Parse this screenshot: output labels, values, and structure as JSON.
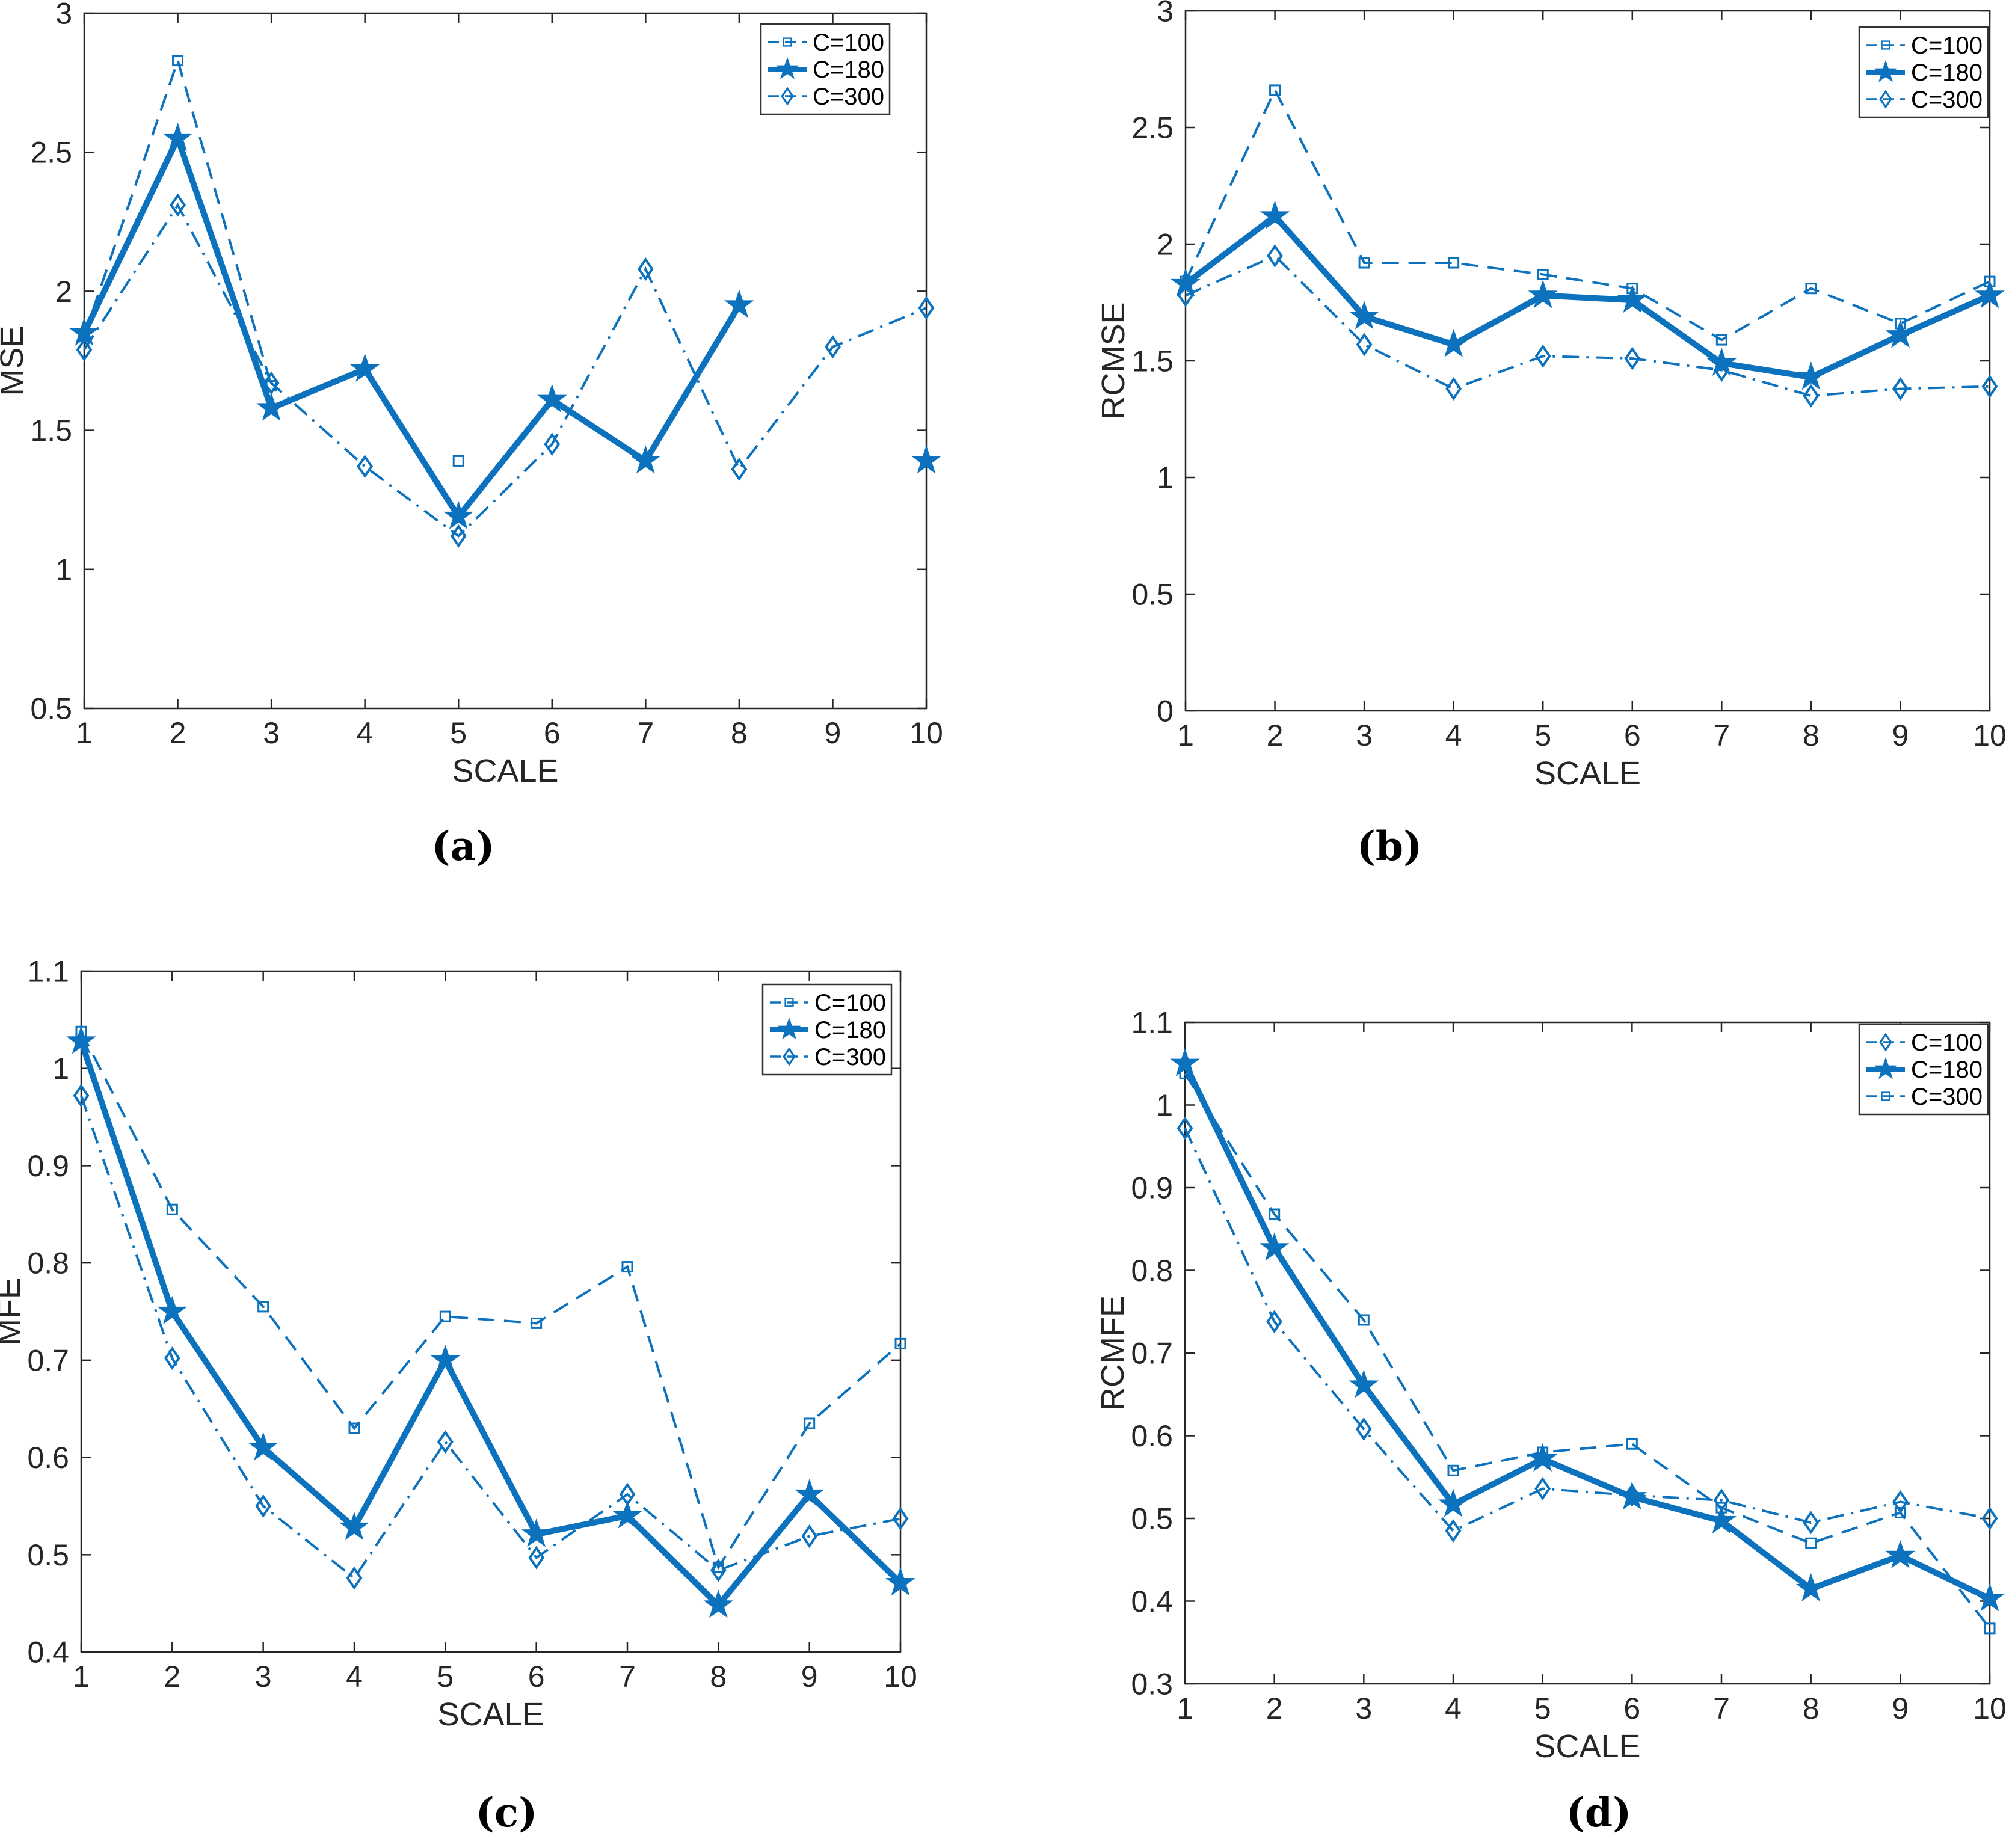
{
  "figure": {
    "background": "#ffffff",
    "accent_color": "#0d72bd",
    "axis_color": "#262626",
    "captions": {
      "a": "(a)",
      "b": "(b)",
      "c": "(c)",
      "d": "(d)"
    }
  },
  "chart_data": [
    {
      "id": "a",
      "type": "line",
      "caption": "(a)",
      "xlabel": "SCALE",
      "ylabel": "MSE",
      "x": [
        1,
        2,
        3,
        4,
        5,
        6,
        7,
        8,
        9,
        10
      ],
      "xticklabels": [
        "1",
        "2",
        "3",
        "4",
        "5",
        "6",
        "7",
        "8",
        "9",
        "10"
      ],
      "xlim": [
        1,
        10
      ],
      "ylim": [
        0.5,
        3
      ],
      "yticks": [
        0.5,
        1,
        1.5,
        2,
        2.5,
        3
      ],
      "yticklabels": [
        "0.5",
        "1",
        "1.5",
        "2",
        "2.5",
        "3"
      ],
      "grid": false,
      "legend_position": "top-right",
      "series": [
        {
          "name": "C=100",
          "marker": "square",
          "linestyle": "dashed",
          "values": [
            1.84,
            2.83,
            1.66,
            null,
            1.39,
            null,
            null,
            null,
            null,
            null
          ]
        },
        {
          "name": "C=180",
          "marker": "star",
          "linestyle": "solid",
          "values": [
            1.85,
            2.55,
            1.58,
            1.72,
            1.19,
            1.61,
            1.39,
            1.95,
            null,
            1.39
          ]
        },
        {
          "name": "C=300",
          "marker": "diamond",
          "linestyle": "dashdot",
          "values": [
            1.79,
            2.31,
            1.67,
            1.37,
            1.12,
            1.45,
            2.08,
            1.36,
            1.8,
            1.94
          ]
        }
      ]
    },
    {
      "id": "b",
      "type": "line",
      "caption": "(b)",
      "xlabel": "SCALE",
      "ylabel": "RCMSE",
      "x": [
        1,
        2,
        3,
        4,
        5,
        6,
        7,
        8,
        9,
        10
      ],
      "xticklabels": [
        "1",
        "2",
        "3",
        "4",
        "5",
        "6",
        "7",
        "8",
        "9",
        "10"
      ],
      "xlim": [
        1,
        10
      ],
      "ylim": [
        0,
        3
      ],
      "yticks": [
        0,
        0.5,
        1,
        1.5,
        2,
        2.5,
        3
      ],
      "yticklabels": [
        "0",
        "0.5",
        "1",
        "1.5",
        "2",
        "2.5",
        "3"
      ],
      "grid": false,
      "legend_position": "top-right",
      "series": [
        {
          "name": "C=100",
          "marker": "square",
          "linestyle": "dashed",
          "values": [
            1.84,
            2.66,
            1.92,
            1.92,
            1.87,
            1.81,
            1.59,
            1.81,
            1.66,
            1.84
          ]
        },
        {
          "name": "C=180",
          "marker": "star",
          "linestyle": "solid",
          "values": [
            1.83,
            2.12,
            1.69,
            1.57,
            1.78,
            1.76,
            1.49,
            1.43,
            1.61,
            1.78
          ]
        },
        {
          "name": "C=300",
          "marker": "diamond",
          "linestyle": "dashdot",
          "values": [
            1.78,
            1.95,
            1.57,
            1.38,
            1.52,
            1.51,
            1.46,
            1.35,
            1.38,
            1.39
          ]
        }
      ]
    },
    {
      "id": "c",
      "type": "line",
      "caption": "(c)",
      "xlabel": "SCALE",
      "ylabel": "MFE",
      "x": [
        1,
        2,
        3,
        4,
        5,
        6,
        7,
        8,
        9,
        10
      ],
      "xticklabels": [
        "1",
        "2",
        "3",
        "4",
        "5",
        "6",
        "7",
        "8",
        "9",
        "10"
      ],
      "xlim": [
        1,
        10
      ],
      "ylim": [
        0.4,
        1.1
      ],
      "yticks": [
        0.4,
        0.5,
        0.6,
        0.7,
        0.8,
        0.9,
        1.0,
        1.1
      ],
      "yticklabels": [
        "0.4",
        "0.5",
        "0.6",
        "0.7",
        "0.8",
        "0.9",
        "1",
        "1.1"
      ],
      "grid": false,
      "legend_position": "top-right",
      "series": [
        {
          "name": "C=100",
          "marker": "square",
          "linestyle": "dashed",
          "values": [
            1.038,
            0.855,
            0.755,
            0.63,
            0.745,
            0.738,
            0.796,
            0.487,
            0.635,
            0.717
          ]
        },
        {
          "name": "C=180",
          "marker": "star",
          "linestyle": "solid",
          "values": [
            1.028,
            0.75,
            0.61,
            0.528,
            0.7,
            0.521,
            0.54,
            0.448,
            0.562,
            0.471
          ]
        },
        {
          "name": "C=300",
          "marker": "diamond",
          "linestyle": "dashdot",
          "values": [
            0.972,
            0.702,
            0.55,
            0.476,
            0.616,
            0.497,
            0.562,
            0.484,
            0.519,
            0.537
          ]
        }
      ]
    },
    {
      "id": "d",
      "type": "line",
      "caption": "(d)",
      "xlabel": "SCALE",
      "ylabel": "RCMFE",
      "x": [
        1,
        2,
        3,
        4,
        5,
        6,
        7,
        8,
        9,
        10
      ],
      "xticklabels": [
        "1",
        "2",
        "3",
        "4",
        "5",
        "6",
        "7",
        "8",
        "9",
        "10"
      ],
      "xlim": [
        1,
        10
      ],
      "ylim": [
        0.3,
        1.1
      ],
      "yticks": [
        0.3,
        0.4,
        0.5,
        0.6,
        0.7,
        0.8,
        0.9,
        1.0,
        1.1
      ],
      "yticklabels": [
        "0.3",
        "0.4",
        "0.5",
        "0.6",
        "0.7",
        "0.8",
        "0.9",
        "1",
        "1.1"
      ],
      "grid": false,
      "legend_position": "top-right",
      "series": [
        {
          "name": "C=100",
          "marker": "diamond",
          "linestyle": "dashdot",
          "values": [
            0.972,
            0.738,
            0.608,
            0.485,
            0.536,
            0.528,
            0.522,
            0.495,
            0.52,
            0.5
          ]
        },
        {
          "name": "C=180",
          "marker": "star",
          "linestyle": "solid",
          "values": [
            1.05,
            0.827,
            0.661,
            0.517,
            0.572,
            0.526,
            0.497,
            0.415,
            0.455,
            0.403
          ]
        },
        {
          "name": "C=300",
          "marker": "square",
          "linestyle": "dashed",
          "values": [
            1.038,
            0.868,
            0.74,
            0.558,
            0.58,
            0.59,
            0.513,
            0.47,
            0.507,
            0.367
          ]
        }
      ]
    }
  ]
}
